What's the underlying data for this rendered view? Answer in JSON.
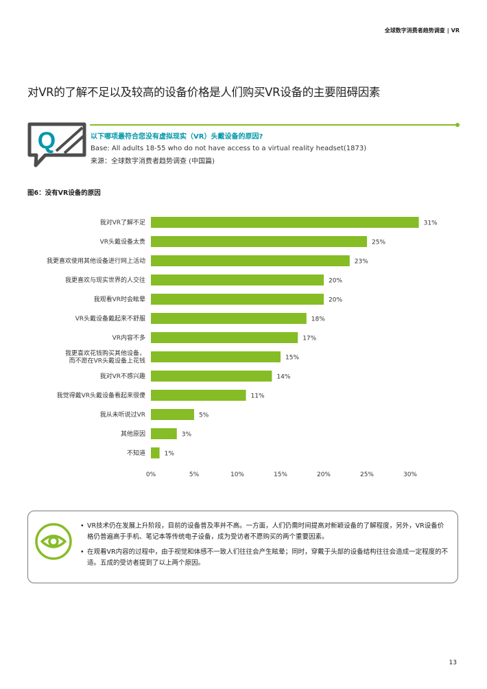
{
  "header": {
    "report": "全球数字消费者趋势调查",
    "separator": "|",
    "section": "VR"
  },
  "page_title": "对VR的了解不足以及较高的设备价格是人们购买VR设备的主要阻碍因素",
  "question_block": {
    "icon_letter": "Q",
    "question": "以下哪项最符合您没有虚拟现实（VR）头戴设备的原因?",
    "base": "Base: All adults 18-55 who do not have access to a virtual reality headset(1873)",
    "source": "来源：全球数字消费者趋势调查 (中国篇)"
  },
  "figure_label": "图6：没有VR设备的原因",
  "chart_data": {
    "type": "bar",
    "orientation": "horizontal",
    "categories": [
      "我对VR了解不足",
      "VR头戴设备太贵",
      "我更喜欢使用其他设备进行网上活动",
      "我更喜欢与现实世界的人交往",
      "我观看VR时会眩晕",
      "VR头戴设备戴起来不舒服",
      "VR内容不多",
      "我更喜欢花钱购买其他设备，\n而不愿在VR头戴设备上花钱",
      "我对VR不感兴趣",
      "我觉得戴VR头戴设备看起来很傻",
      "我从未听说过VR",
      "其他原因",
      "不知道"
    ],
    "values": [
      31,
      25,
      23,
      20,
      20,
      18,
      17,
      15,
      14,
      11,
      5,
      3,
      1
    ],
    "value_labels": [
      "31%",
      "25%",
      "23%",
      "20%",
      "20%",
      "18%",
      "17%",
      "15%",
      "14%",
      "11%",
      "5%",
      "3%",
      "1%"
    ],
    "xlim": [
      0,
      31
    ],
    "ticks": [
      0,
      5,
      10,
      15,
      20,
      25,
      30
    ],
    "tick_labels": [
      "0%",
      "5%",
      "10%",
      "15%",
      "20%",
      "25%",
      "30%"
    ],
    "bar_color": "#86bc25",
    "grid": false,
    "title": "",
    "xlabel": "",
    "ylabel": ""
  },
  "insights": [
    "VR技术仍在发展上升阶段，目前的设备普及率并不高。一方面，人们仍需时间提高对新颖设备的了解程度，另外，VR设备价格仍普遍高于手机、笔记本等传统电子设备，成为受访者不愿购买的两个重要因素。",
    "在观看VR内容的过程中，由于视觉和体感不一致人们往往会产生眩晕；同时，穿戴于头部的设备结构往往会造成一定程度的不适。五成的受访者提到了以上两个原因。"
  ],
  "bullet_char": "•",
  "page_number": "13",
  "colors": {
    "accent_green": "#86bc25",
    "question_teal": "#0097a9",
    "icon_dark": "#4d4d4d"
  }
}
